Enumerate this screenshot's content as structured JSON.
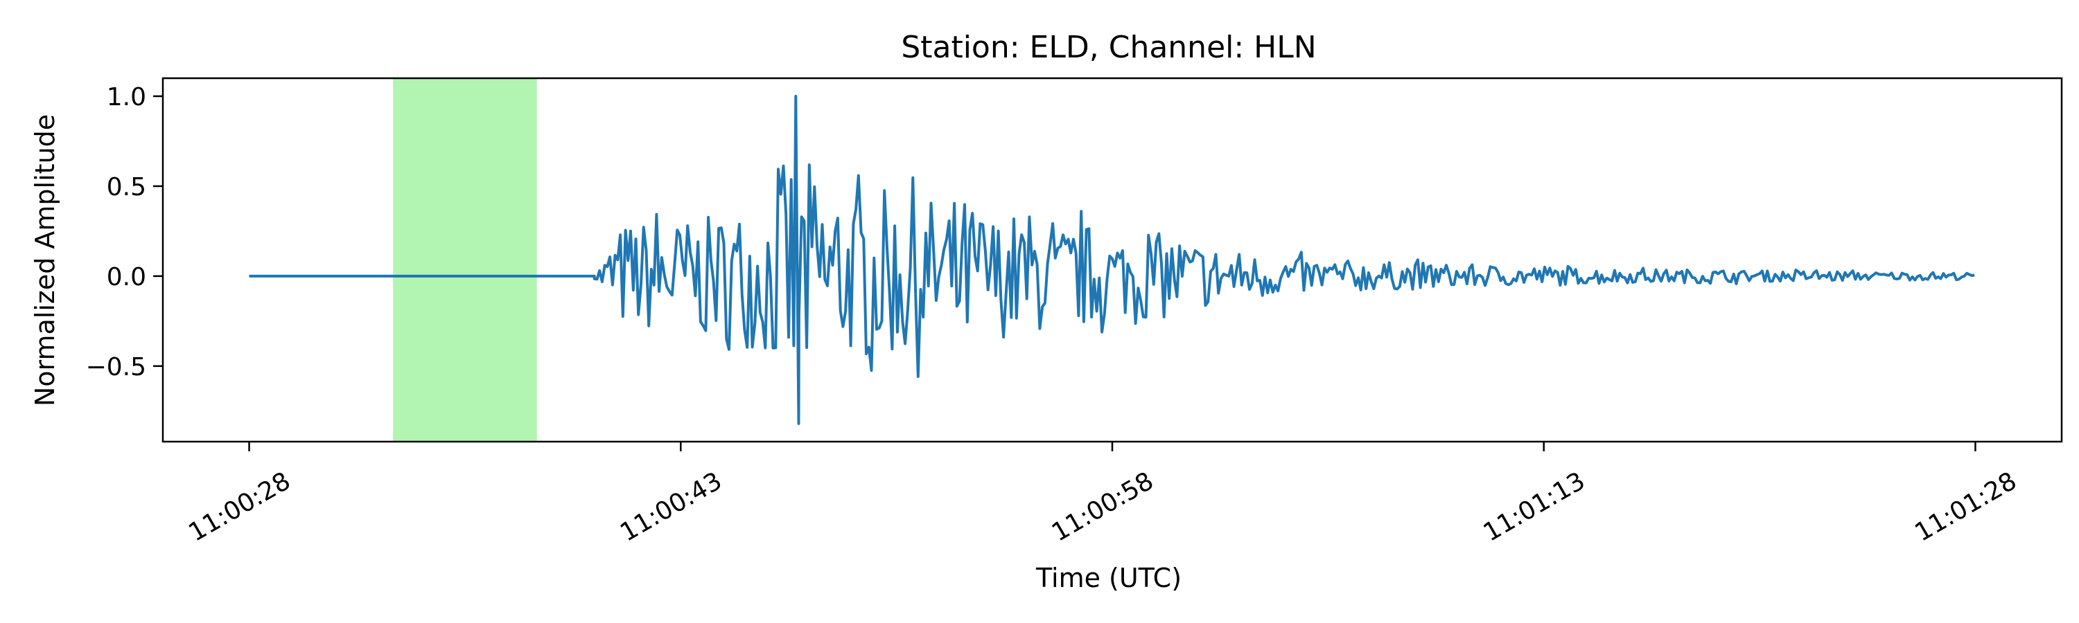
{
  "chart_data": {
    "type": "line",
    "title": "Station: ELD, Channel: HLN",
    "xlabel": "Time (UTC)",
    "ylabel": "Normalized Amplitude",
    "xlim": [
      "11:00:25",
      "11:01:31"
    ],
    "ylim": [
      -0.92,
      1.1
    ],
    "x_ticks": [
      "11:00:28",
      "11:00:43",
      "11:00:58",
      "11:01:13",
      "11:01:28"
    ],
    "y_ticks": [
      1.0,
      0.5,
      0.0,
      -0.5
    ],
    "y_tick_labels": [
      "1.0",
      "0.5",
      "0.0",
      "−0.5"
    ],
    "grid": false,
    "highlight_span": {
      "start": "11:00:33",
      "end": "11:00:38",
      "color": "#b2f5b2"
    },
    "series": [
      {
        "color": "#1f77b4",
        "x": [
          "11:00:28",
          "11:00:40",
          "11:00:41",
          "11:00:42",
          "11:00:43",
          "11:00:44",
          "11:00:45",
          "11:00:46",
          "11:00:47",
          "11:00:48",
          "11:00:49",
          "11:00:50",
          "11:00:51",
          "11:00:52",
          "11:00:53",
          "11:00:54",
          "11:00:55",
          "11:00:56",
          "11:00:57",
          "11:00:58",
          "11:00:59",
          "11:01:00",
          "11:01:01",
          "11:01:02",
          "11:01:03",
          "11:01:04",
          "11:01:05",
          "11:01:06",
          "11:01:07",
          "11:01:08",
          "11:01:09",
          "11:01:10",
          "11:01:11",
          "11:01:12",
          "11:01:13",
          "11:01:14",
          "11:01:15",
          "11:01:16",
          "11:01:17",
          "11:01:18",
          "11:01:19",
          "11:01:20",
          "11:01:21",
          "11:01:22",
          "11:01:23",
          "11:01:24",
          "11:01:25",
          "11:01:26",
          "11:01:27",
          "11:01:28"
        ],
        "amplitude_envelope": [
          0.0,
          0.02,
          0.4,
          0.42,
          0.42,
          0.44,
          0.5,
          0.6,
          1.0,
          0.68,
          0.6,
          0.65,
          0.55,
          0.6,
          0.58,
          0.44,
          0.5,
          0.35,
          0.4,
          0.32,
          0.3,
          0.33,
          0.25,
          0.2,
          0.16,
          0.14,
          0.13,
          0.12,
          0.11,
          0.1,
          0.1,
          0.09,
          0.08,
          0.07,
          0.08,
          0.06,
          0.06,
          0.05,
          0.05,
          0.05,
          0.05,
          0.04,
          0.04,
          0.04,
          0.04,
          0.03,
          0.03,
          0.03,
          0.03,
          0.02
        ]
      }
    ]
  }
}
